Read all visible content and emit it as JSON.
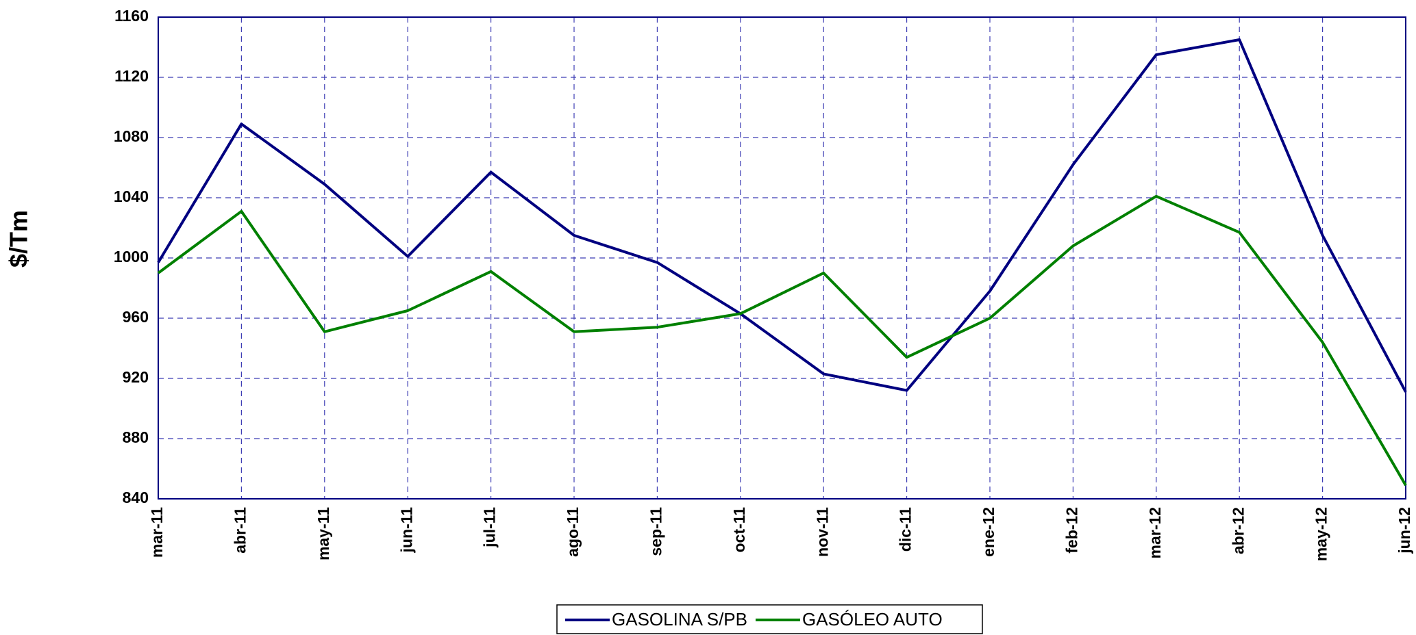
{
  "chart_data": {
    "type": "line",
    "ylabel": "$/Tm",
    "categories": [
      "mar-11",
      "abr-11",
      "may-11",
      "jun-11",
      "jul-11",
      "ago-11",
      "sep-11",
      "oct-11",
      "nov-11",
      "dic-11",
      "ene-12",
      "feb-12",
      "mar-12",
      "abr-12",
      "may-12",
      "jun-12"
    ],
    "series": [
      {
        "name": "GASOLINA S/PB",
        "color": "#000080",
        "values": [
          997,
          1089,
          1049,
          1001,
          1057,
          1015,
          997,
          963,
          923,
          912,
          978,
          1062,
          1135,
          1145,
          1015,
          911
        ]
      },
      {
        "name": "GASÓLEO AUTO",
        "color": "#008000",
        "values": [
          990,
          1031,
          951,
          965,
          991,
          951,
          954,
          963,
          990,
          934,
          960,
          1008,
          1041,
          1017,
          944,
          849
        ]
      }
    ],
    "ylim": [
      840,
      1160
    ],
    "yticks": [
      840,
      880,
      920,
      960,
      1000,
      1040,
      1080,
      1120,
      1160
    ],
    "grid": true,
    "legend": "bottom"
  }
}
